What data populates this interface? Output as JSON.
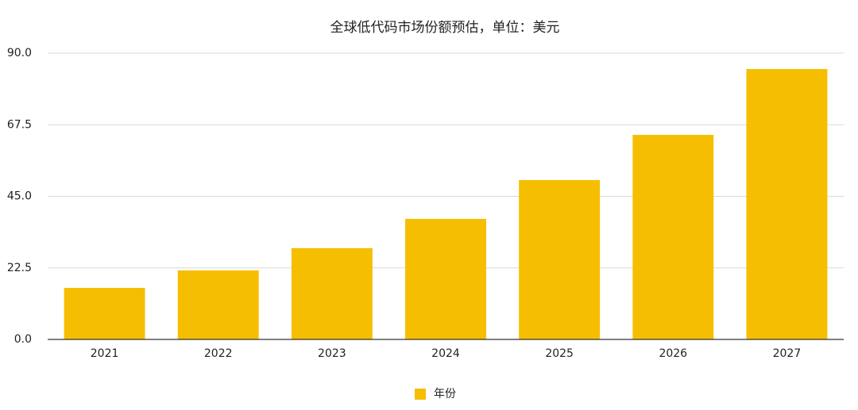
{
  "chart_data": {
    "type": "bar",
    "title": "全球低代码市场份额预估，单位：美元",
    "categories": [
      "2021",
      "2022",
      "2023",
      "2024",
      "2025",
      "2026",
      "2027"
    ],
    "series": [
      {
        "name": "年份",
        "color": "#f6be00",
        "values": [
          16.2,
          21.7,
          28.7,
          37.9,
          50.1,
          64.3,
          85.0
        ]
      }
    ],
    "ylim": [
      0,
      90
    ],
    "yticks": [
      {
        "value": 0,
        "label": "0.0"
      },
      22.5,
      {
        "value": 45,
        "label": "45.0"
      },
      67.5,
      {
        "value": 90,
        "label": "90.0"
      }
    ],
    "grid": true,
    "legend": "bottom"
  }
}
